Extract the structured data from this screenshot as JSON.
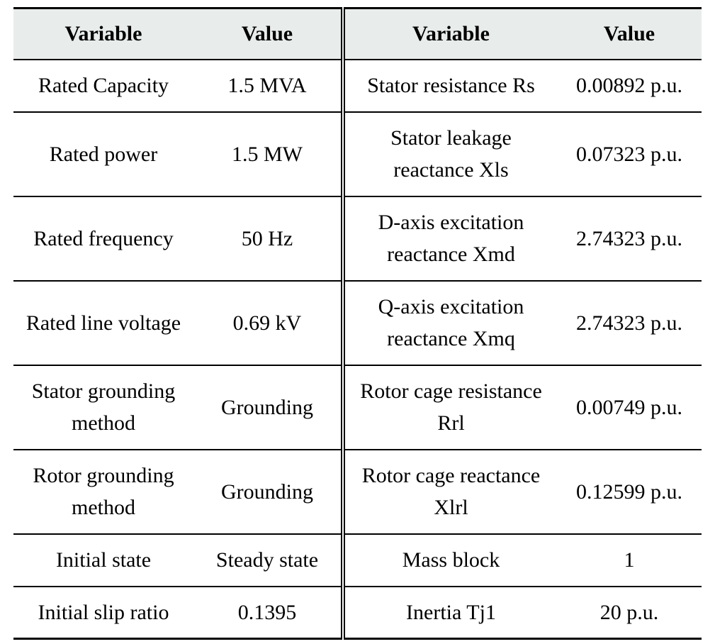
{
  "table": {
    "headers": [
      "Variable",
      "Value",
      "Variable",
      "Value"
    ],
    "rows": [
      [
        "Rated Capacity",
        "1.5 MVA",
        "Stator resistance Rs",
        "0.00892 p.u."
      ],
      [
        "Rated power",
        "1.5 MW",
        "Stator leakage reactance Xls",
        "0.07323 p.u."
      ],
      [
        "Rated frequency",
        "50 Hz",
        "D-axis excitation reactance Xmd",
        "2.74323 p.u."
      ],
      [
        "Rated line voltage",
        "0.69 kV",
        "Q-axis excitation reactance Xmq",
        "2.74323 p.u."
      ],
      [
        "Stator grounding method",
        "Grounding",
        "Rotor cage resistance Rrl",
        "0.00749 p.u."
      ],
      [
        "Rotor grounding method",
        "Grounding",
        "Rotor cage reactance Xlrl",
        "0.12599 p.u."
      ],
      [
        "Initial state",
        "Steady state",
        "Mass block",
        "1"
      ],
      [
        "Initial slip ratio",
        "0.1395",
        "Inertia Tj1",
        "20 p.u."
      ]
    ]
  }
}
